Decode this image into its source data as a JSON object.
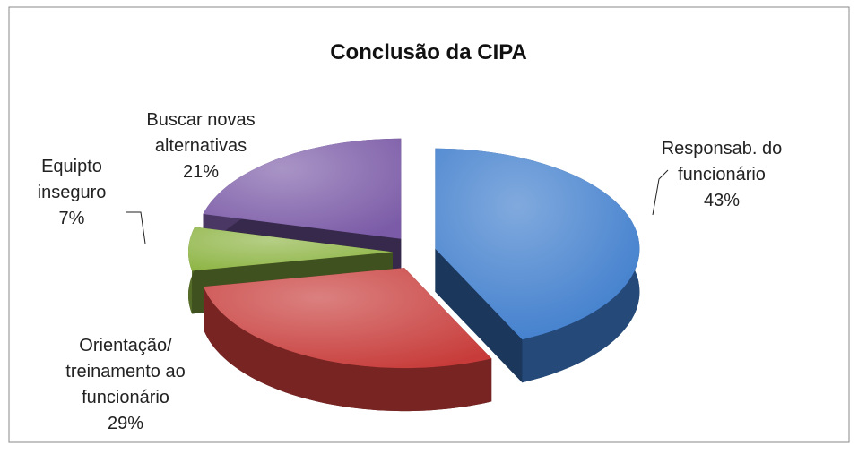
{
  "chart_data": {
    "type": "pie",
    "title": "Conclusão da CIPA",
    "categories": [
      "Responsab. do funcionário",
      "Orientação/ treinamento ao funcionário",
      "Equipto inseguro",
      "Buscar novas alternativas"
    ],
    "values": [
      43,
      29,
      7,
      21
    ],
    "value_labels": [
      "43%",
      "29%",
      "7%",
      "21%"
    ],
    "colors": [
      "#3d7ccc",
      "#c73c3a",
      "#8db443",
      "#7b5ba7"
    ]
  }
}
